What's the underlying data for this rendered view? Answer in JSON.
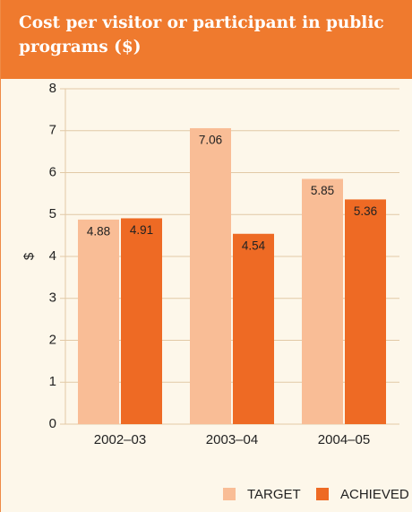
{
  "chart_data": {
    "type": "bar",
    "title": "Cost per visitor or participant in public programs ($)",
    "y_label": "$",
    "categories": [
      "2002–03",
      "2003–04",
      "2004–05"
    ],
    "series": [
      {
        "name": "TARGET",
        "color": "#f9bd96",
        "values": [
          4.88,
          7.06,
          5.85
        ]
      },
      {
        "name": "ACHIEVED",
        "color": "#ee6a24",
        "values": [
          4.91,
          4.54,
          5.36
        ]
      }
    ],
    "ylim": [
      0,
      8
    ],
    "yticks": [
      0,
      1,
      2,
      3,
      4,
      5,
      6,
      7,
      8
    ],
    "grid": true
  }
}
